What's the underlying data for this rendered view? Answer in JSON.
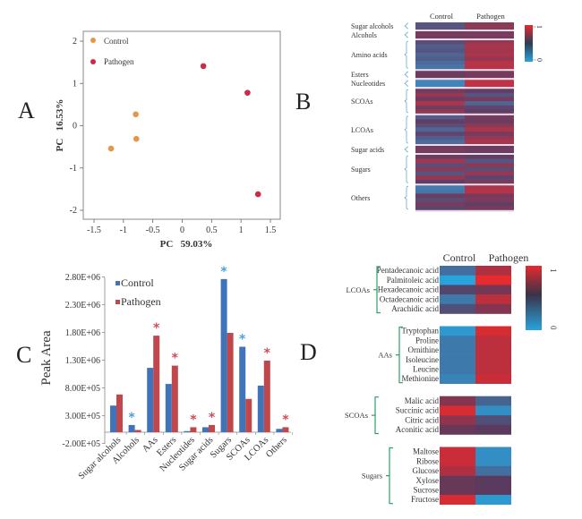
{
  "panels": {
    "A": "A",
    "B": "B",
    "C": "C",
    "D": "D"
  },
  "colors": {
    "control_point": "#e8954a",
    "pathogen_point": "#cc2a45",
    "control_bar": "#3f74bb",
    "pathogen_bar": "#c0474b",
    "control_star": "#4aa3d6",
    "pathogen_star": "#d44a5a",
    "heat_low": "#29a3dc",
    "heat_mid": "#5a3a5e",
    "heat_high": "#e62a2e",
    "bracket": "#2ca06a",
    "bracket_b": "#6aa8d0"
  },
  "chart_data": [
    {
      "id": "A",
      "type": "scatter",
      "title": "",
      "xlabel": "PC   59.03%",
      "ylabel": "PC   16.53%",
      "xlim": [
        -1.65,
        1.7
      ],
      "ylim": [
        -2.2,
        2.2
      ],
      "xticks": [
        -1.5,
        -1,
        -0.5,
        0,
        0.5,
        1,
        1.5
      ],
      "xtick_labels": [
        "-1.5",
        "-1",
        "-0.5",
        "0",
        "0.5",
        "1",
        "1.5"
      ],
      "yticks": [
        2,
        1,
        0,
        -1,
        -2
      ],
      "ytick_labels": [
        "2",
        "1",
        "0",
        "-1",
        "-2"
      ],
      "legend_position": "top-left",
      "grid": false,
      "series": [
        {
          "name": "Control",
          "points": [
            [
              -0.79,
              0.27
            ],
            [
              -0.78,
              -0.31
            ],
            [
              -1.21,
              -0.54
            ]
          ]
        },
        {
          "name": "Pathogen",
          "points": [
            [
              0.36,
              1.41
            ],
            [
              1.11,
              0.78
            ],
            [
              1.29,
              -1.62
            ]
          ]
        }
      ]
    },
    {
      "id": "B",
      "type": "heatmap",
      "columns": [
        "Control",
        "Pathogen"
      ],
      "colorbar": {
        "max_label": "1",
        "min_label": "0"
      },
      "groups": [
        {
          "label": "Sugar alcohols",
          "rows": [
            [
              0.35,
              0.7
            ]
          ]
        },
        {
          "label": "Alcohols",
          "rows": [
            [
              0.6,
              0.6
            ]
          ]
        },
        {
          "label": "Amino acids",
          "rows": [
            [
              0.4,
              0.75
            ],
            [
              0.3,
              0.85
            ],
            [
              0.35,
              0.8
            ],
            [
              0.25,
              0.85
            ],
            [
              0.3,
              0.75
            ],
            [
              0.2,
              0.9
            ],
            [
              0.15,
              0.9
            ]
          ]
        },
        {
          "label": "Esters",
          "rows": [
            [
              0.55,
              0.6
            ]
          ]
        },
        {
          "label": "Nucleotides",
          "rows": [
            [
              0.05,
              0.95
            ]
          ]
        },
        {
          "label": "SCOAs",
          "rows": [
            [
              0.6,
              0.5
            ],
            [
              0.75,
              0.35
            ],
            [
              0.55,
              0.6
            ],
            [
              0.85,
              0.25
            ],
            [
              0.6,
              0.45
            ],
            [
              0.7,
              0.5
            ]
          ]
        },
        {
          "label": "LCOAs",
          "rows": [
            [
              0.3,
              0.6
            ],
            [
              0.5,
              0.55
            ],
            [
              0.4,
              0.7
            ],
            [
              0.25,
              0.85
            ],
            [
              0.45,
              0.6
            ],
            [
              0.3,
              0.75
            ],
            [
              0.2,
              0.85
            ]
          ]
        },
        {
          "label": "Sugar acids",
          "rows": [
            [
              0.6,
              0.55
            ]
          ]
        },
        {
          "label": "Sugars",
          "rows": [
            [
              0.55,
              0.5
            ],
            [
              0.8,
              0.35
            ],
            [
              0.4,
              0.7
            ],
            [
              0.7,
              0.4
            ],
            [
              0.35,
              0.75
            ],
            [
              0.75,
              0.45
            ],
            [
              0.5,
              0.6
            ]
          ]
        },
        {
          "label": "Others",
          "rows": [
            [
              0.1,
              0.85
            ],
            [
              0.15,
              0.9
            ],
            [
              0.55,
              0.6
            ],
            [
              0.4,
              0.65
            ],
            [
              0.6,
              0.5
            ],
            [
              0.45,
              0.6
            ]
          ]
        }
      ]
    },
    {
      "id": "C",
      "type": "bar",
      "title": "",
      "xlabel": "",
      "ylabel": "Peak Area",
      "ylim": [
        -200000,
        2800000
      ],
      "yticks": [
        2800000,
        2300000,
        1800000,
        1300000,
        800000,
        300000,
        -200000
      ],
      "ytick_labels": [
        "2.80E+06",
        "2.30E+06",
        "1.80E+06",
        "1.30E+06",
        "8.00E+05",
        "3.00E+05",
        "-2.00E+05"
      ],
      "legend_position": "top-left",
      "categories": [
        "Sugar alcohols",
        "Alcohols",
        "AAs",
        "Esters",
        "Nucleotides",
        "Sugar acids",
        "Sugars",
        "SCOAs",
        "LCOAs",
        "Others"
      ],
      "series": [
        {
          "name": "Control",
          "values": [
            480000,
            130000,
            1160000,
            870000,
            20000,
            90000,
            2760000,
            1540000,
            840000,
            60000
          ]
        },
        {
          "name": "Pathogen",
          "values": [
            680000,
            40000,
            1740000,
            1200000,
            90000,
            130000,
            1790000,
            600000,
            1290000,
            90000
          ]
        }
      ],
      "significance": [
        {
          "category": "Alcohols",
          "series": "Control",
          "mark": "*"
        },
        {
          "category": "AAs",
          "series": "Pathogen",
          "mark": "*"
        },
        {
          "category": "Esters",
          "series": "Pathogen",
          "mark": "*"
        },
        {
          "category": "Nucleotides",
          "series": "Pathogen",
          "mark": "*"
        },
        {
          "category": "Sugar acids",
          "series": "Pathogen",
          "mark": "*"
        },
        {
          "category": "Sugars",
          "series": "Control",
          "mark": "*"
        },
        {
          "category": "SCOAs",
          "series": "Control",
          "mark": "*"
        },
        {
          "category": "LCOAs",
          "series": "Pathogen",
          "mark": "*"
        },
        {
          "category": "Others",
          "series": "Pathogen",
          "mark": "*"
        }
      ]
    },
    {
      "id": "D",
      "type": "heatmap",
      "columns": [
        "Control",
        "Pathogen"
      ],
      "colorbar": {
        "max_label": "1",
        "min_label": "0"
      },
      "groups": [
        {
          "label": "LCOAs",
          "rows": [
            {
              "name": "Pentadecanoic acid",
              "values": [
                0.25,
                0.8
              ]
            },
            {
              "name": "Palmitoleic acid",
              "values": [
                0.0,
                1.0
              ]
            },
            {
              "name": "Hexadecanoic acid",
              "values": [
                0.45,
                0.6
              ]
            },
            {
              "name": "Octadecanoic acid",
              "values": [
                0.2,
                0.85
              ]
            },
            {
              "name": "Arachidic acid",
              "values": [
                0.4,
                0.65
              ]
            }
          ]
        },
        {
          "label": "AAs",
          "rows": [
            {
              "name": "Tryptophan",
              "values": [
                0.05,
                0.95
              ]
            },
            {
              "name": "Proline",
              "values": [
                0.2,
                0.85
              ]
            },
            {
              "name": "Ornithine",
              "values": [
                0.2,
                0.85
              ]
            },
            {
              "name": "Isoleucine",
              "values": [
                0.2,
                0.85
              ]
            },
            {
              "name": "Leucine",
              "values": [
                0.2,
                0.85
              ]
            },
            {
              "name": "Methionine",
              "values": [
                0.15,
                0.9
              ]
            }
          ]
        },
        {
          "label": "SCOAs",
          "rows": [
            {
              "name": "Malic acid",
              "values": [
                0.65,
                0.3
              ]
            },
            {
              "name": "Succinic acid",
              "values": [
                0.95,
                0.1
              ]
            },
            {
              "name": "Citric acid",
              "values": [
                0.7,
                0.4
              ]
            },
            {
              "name": "Aconitic acid",
              "values": [
                0.55,
                0.5
              ]
            }
          ]
        },
        {
          "label": "Sugars",
          "rows": [
            {
              "name": "Maltose",
              "values": [
                0.9,
                0.1
              ]
            },
            {
              "name": "Ribose",
              "values": [
                0.9,
                0.1
              ]
            },
            {
              "name": "Glucose",
              "values": [
                0.8,
                0.25
              ]
            },
            {
              "name": "Xylose",
              "values": [
                0.55,
                0.5
              ]
            },
            {
              "name": "Sucrose",
              "values": [
                0.55,
                0.5
              ]
            },
            {
              "name": "Fructose",
              "values": [
                0.95,
                0.05
              ]
            }
          ]
        }
      ]
    }
  ]
}
